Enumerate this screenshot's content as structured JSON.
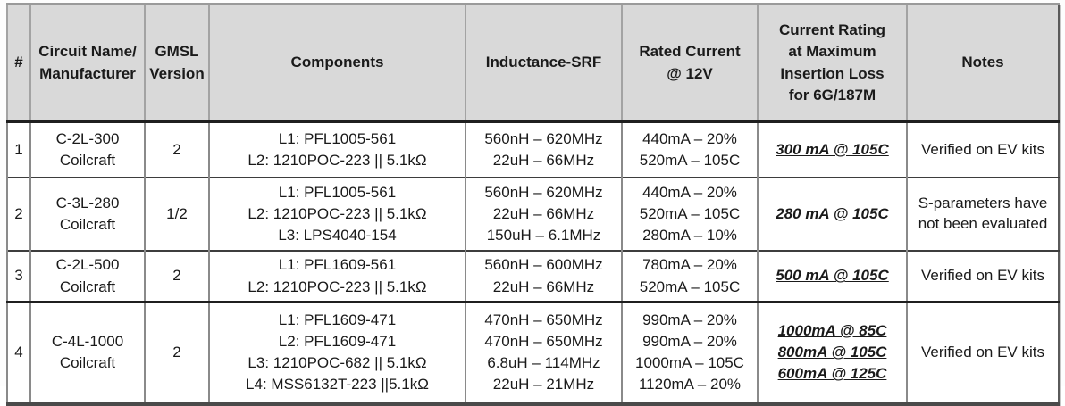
{
  "table": {
    "columns": [
      {
        "id": "num",
        "lines": [
          "#"
        ]
      },
      {
        "id": "circuit",
        "lines": [
          "Circuit Name/",
          "Manufacturer"
        ]
      },
      {
        "id": "gmsl",
        "lines": [
          "GMSL",
          "Version"
        ]
      },
      {
        "id": "components",
        "lines": [
          "Components"
        ]
      },
      {
        "id": "inductance",
        "lines": [
          "Inductance-SRF"
        ]
      },
      {
        "id": "rated_current",
        "lines": [
          "Rated Current",
          "@ 12V"
        ]
      },
      {
        "id": "current_rating",
        "lines": [
          "Current Rating",
          "at Maximum",
          "Insertion Loss",
          "for 6G/187M"
        ]
      },
      {
        "id": "notes",
        "lines": [
          "Notes"
        ]
      }
    ],
    "rows": [
      {
        "num": "1",
        "circuit": [
          "C-2L-300",
          "Coilcraft"
        ],
        "gmsl": "2",
        "components": [
          "L1: PFL1005-561",
          "L2: 1210POC-223 || 5.1kΩ"
        ],
        "inductance": [
          "560nH – 620MHz",
          "22uH – 66MHz"
        ],
        "rated_current": [
          "440mA – 20%",
          "520mA – 105C"
        ],
        "current_rating": [
          "300 mA @ 105C"
        ],
        "notes": "Verified on EV kits"
      },
      {
        "num": "2",
        "circuit": [
          "C-3L-280",
          "Coilcraft"
        ],
        "gmsl": "1/2",
        "components": [
          "L1: PFL1005-561",
          "L2: 1210POC-223 || 5.1kΩ",
          "L3: LPS4040-154"
        ],
        "inductance": [
          "560nH – 620MHz",
          "22uH – 66MHz",
          "150uH – 6.1MHz"
        ],
        "rated_current": [
          "440mA – 20%",
          "520mA – 105C",
          "280mA – 10%"
        ],
        "current_rating": [
          "280 mA @ 105C"
        ],
        "notes": "S-parameters have not been evaluated"
      },
      {
        "num": "3",
        "circuit": [
          "C-2L-500",
          "Coilcraft"
        ],
        "gmsl": "2",
        "components": [
          "L1: PFL1609-561",
          "L2: 1210POC-223 || 5.1kΩ"
        ],
        "inductance": [
          "560nH – 600MHz",
          "22uH – 66MHz"
        ],
        "rated_current": [
          "780mA – 20%",
          "520mA – 105C"
        ],
        "current_rating": [
          "500 mA @ 105C"
        ],
        "notes": "Verified on EV kits"
      },
      {
        "num": "4",
        "circuit": [
          "C-4L-1000",
          "Coilcraft"
        ],
        "gmsl": "2",
        "components": [
          "L1: PFL1609-471",
          "L2: PFL1609-471",
          "L3: 1210POC-682 || 5.1kΩ",
          "L4: MSS6132T-223 ||5.1kΩ"
        ],
        "inductance": [
          "470nH – 650MHz",
          "470nH – 650MHz",
          "6.8uH – 114MHz",
          "22uH – 21MHz"
        ],
        "rated_current": [
          "990mA – 20%",
          "990mA – 20%",
          "1000mA – 105C",
          "1120mA – 20%"
        ],
        "current_rating": [
          "1000mA @ 85C",
          "800mA @ 105C",
          "600mA @ 125C"
        ],
        "notes": "Verified on EV kits"
      }
    ]
  }
}
